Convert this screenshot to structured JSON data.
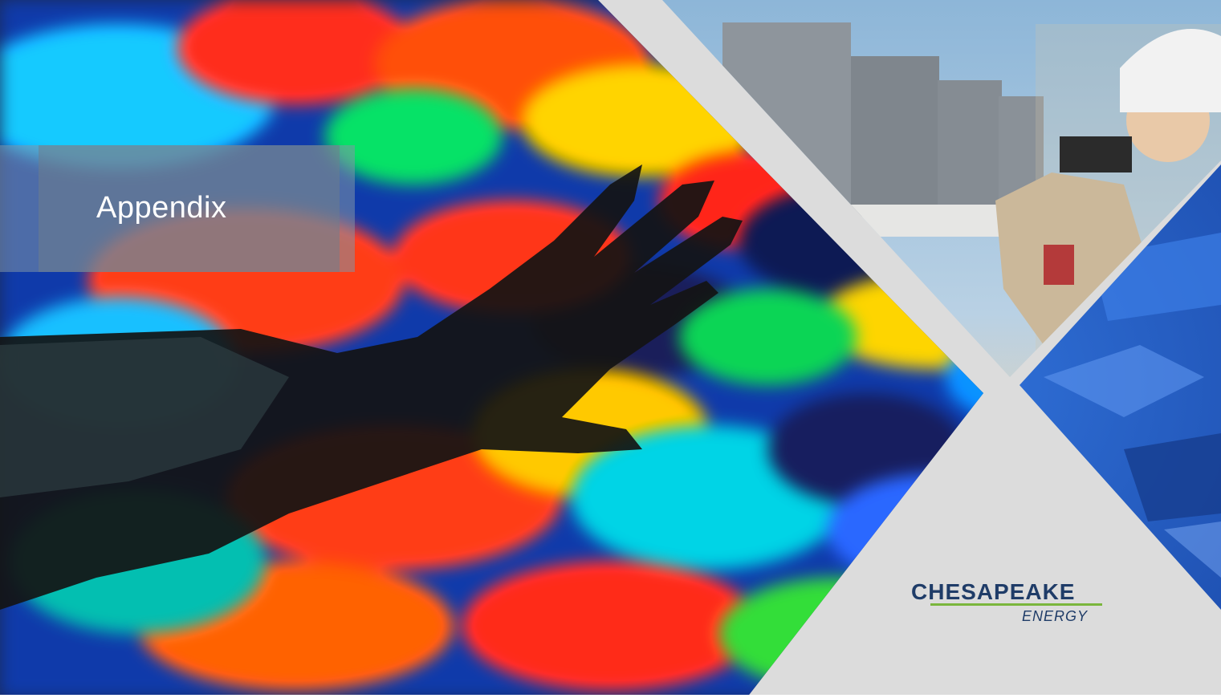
{
  "slide": {
    "title": "Appendix",
    "logo": {
      "name": "CHESAPEAKE",
      "sub": "ENERGY"
    }
  },
  "images": [
    {
      "name": "seismic-heatmap-photo"
    },
    {
      "name": "tank-farm-photo"
    },
    {
      "name": "blue-rock-photo"
    }
  ],
  "colors": {
    "logo_navy": "#1f3c68",
    "logo_green": "#7ab63c",
    "panel_gray": "#dcdcdc"
  }
}
